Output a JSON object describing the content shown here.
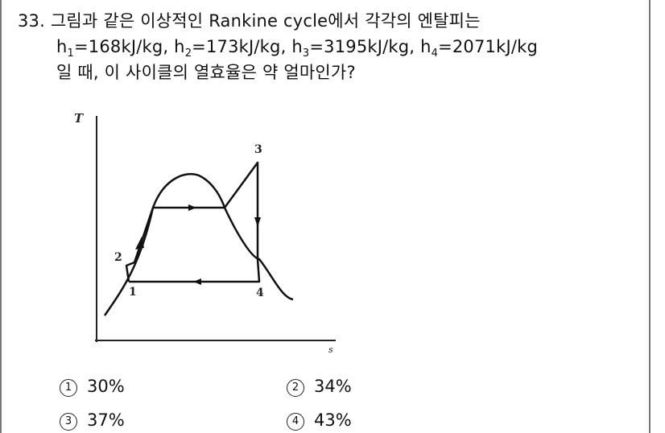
{
  "question": {
    "number": "33.",
    "line1_text": "그림과 같은 이상적인 Rankine cycle에서 각각의 엔탈피는",
    "h1_label": "h",
    "h1_sub": "1",
    "h1_value": "=168kJ/kg,",
    "h2_label": "h",
    "h2_sub": "2",
    "h2_value": "=173kJ/kg,",
    "h3_label": "h",
    "h3_sub": "3",
    "h3_value": "=3195kJ/kg,",
    "h4_label": "h",
    "h4_sub": "4",
    "h4_value": "=2071kJ/kg",
    "line3_text": "일 때, 이 사이클의 열효율은 약 얼마인가?"
  },
  "diagram": {
    "y_axis_label": "T",
    "x_axis_label": "s",
    "point_labels": {
      "p1": "1",
      "p2": "2",
      "p3": "3",
      "p4": "4"
    }
  },
  "choices": [
    {
      "mark": "1",
      "text": "30%"
    },
    {
      "mark": "2",
      "text": "34%"
    },
    {
      "mark": "3",
      "text": "37%"
    },
    {
      "mark": "4",
      "text": "43%"
    }
  ]
}
